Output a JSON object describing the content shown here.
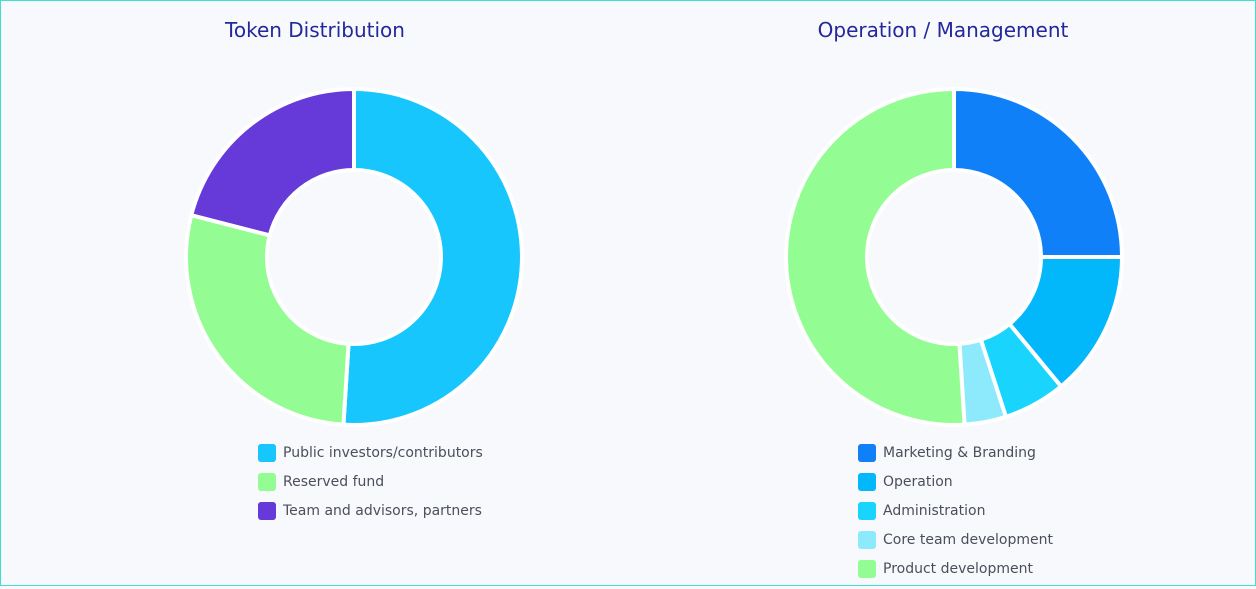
{
  "chart_data": [
    {
      "type": "pie",
      "title": "Token Distribution",
      "categories": [
        "Public investors/contributors",
        "Reserved fund",
        "Team and advisors, partners"
      ],
      "values": [
        51,
        28,
        21
      ],
      "colors": [
        "#17c6fc",
        "#93fd93",
        "#6639d9"
      ],
      "donut": true,
      "legend_position": "bottom"
    },
    {
      "type": "pie",
      "title": "Operation / Management",
      "categories": [
        "Marketing & Branding",
        "Operation",
        "Administration",
        "Core team development",
        "Product development"
      ],
      "values": [
        25,
        14,
        6,
        4,
        51
      ],
      "colors": [
        "#0f80f8",
        "#02b7fa",
        "#19d4fc",
        "#8deafd",
        "#93fd93"
      ],
      "donut": true,
      "legend_position": "bottom"
    }
  ]
}
